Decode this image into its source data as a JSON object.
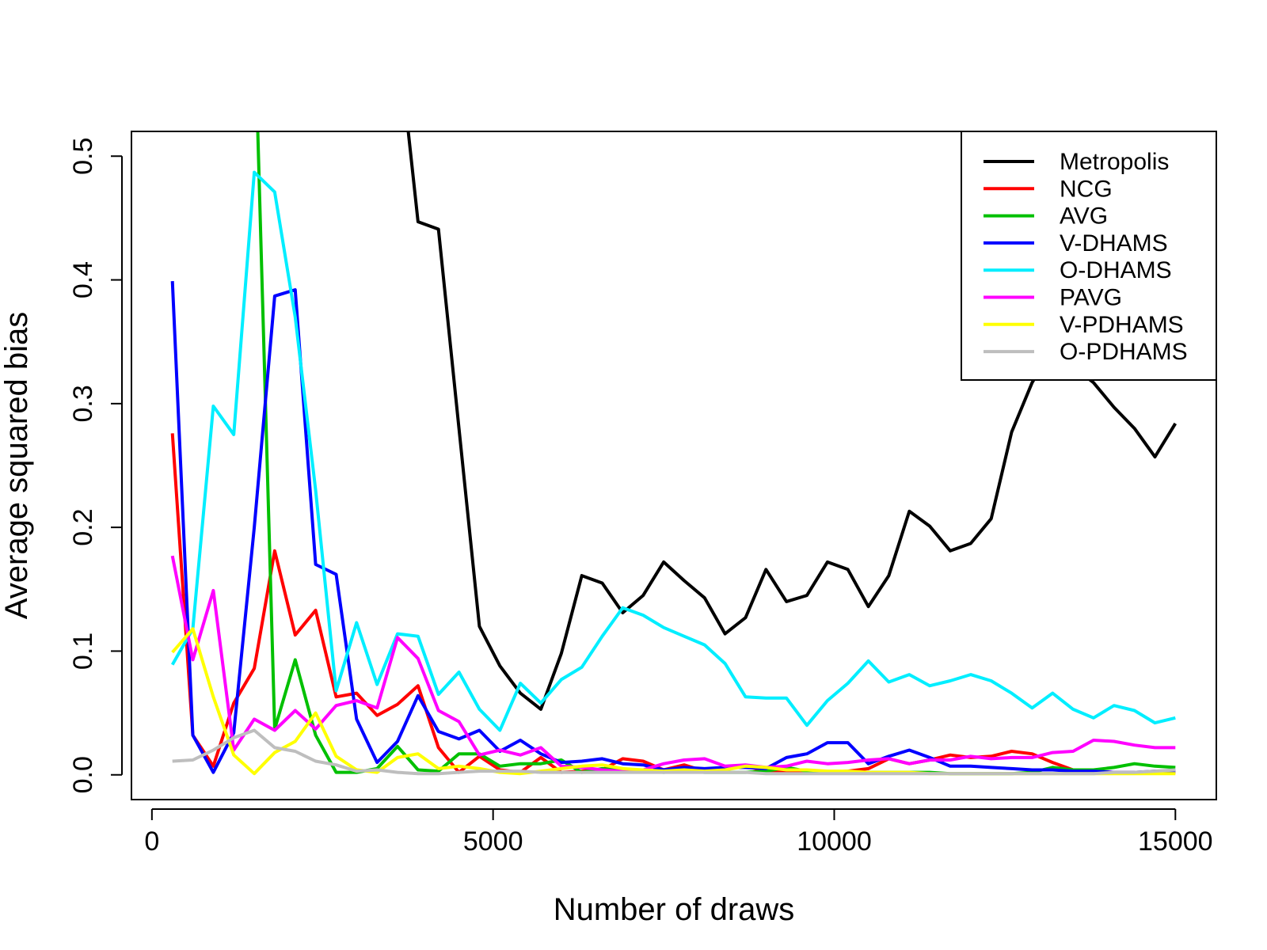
{
  "chart_data": {
    "type": "line",
    "title": "",
    "xlabel": "Number of draws",
    "ylabel": "Average squared bias",
    "xlim": [
      -300,
      15600
    ],
    "ylim": [
      -0.02,
      0.52
    ],
    "x_ticks": [
      0,
      5000,
      10000,
      15000
    ],
    "x_tick_labels": [
      "0",
      "5000",
      "10000",
      "15000"
    ],
    "y_ticks": [
      0.0,
      0.1,
      0.2,
      0.3,
      0.4,
      0.5
    ],
    "y_tick_labels": [
      "0.0",
      "0.1",
      "0.2",
      "0.3",
      "0.4",
      "0.5"
    ],
    "grid": false,
    "legend_position": "top-right",
    "x": [
      300,
      600,
      900,
      1200,
      1500,
      1800,
      2100,
      2400,
      2700,
      3000,
      3300,
      3600,
      3900,
      4200,
      4500,
      4800,
      5100,
      5400,
      5700,
      6000,
      6300,
      6600,
      6900,
      7200,
      7500,
      7800,
      8100,
      8400,
      8700,
      9000,
      9300,
      9600,
      9900,
      10200,
      10500,
      10800,
      11100,
      11400,
      11700,
      12000,
      12300,
      12600,
      12900,
      13200,
      13500,
      13800,
      14100,
      14400,
      14700,
      15000
    ],
    "series": [
      {
        "name": "Metropolis",
        "color": "#000000",
        "values": [
          null,
          null,
          null,
          null,
          null,
          null,
          null,
          null,
          null,
          null,
          null,
          0.6,
          0.447,
          0.441,
          0.28,
          0.12,
          0.088,
          0.066,
          0.053,
          0.098,
          0.161,
          0.155,
          0.131,
          0.145,
          0.172,
          0.157,
          0.143,
          0.114,
          0.127,
          0.166,
          0.14,
          0.145,
          0.172,
          0.166,
          0.136,
          0.161,
          0.213,
          0.201,
          0.181,
          0.187,
          0.207,
          0.277,
          0.317,
          0.345,
          0.33,
          0.317,
          0.297,
          0.28,
          0.257,
          0.284
        ]
      },
      {
        "name": "NCG",
        "color": "#ff0000",
        "values": [
          0.276,
          0.032,
          0.007,
          0.058,
          0.086,
          0.181,
          0.113,
          0.133,
          0.063,
          0.066,
          0.048,
          0.057,
          0.072,
          0.022,
          0.002,
          0.015,
          0.004,
          0.002,
          0.014,
          0.002,
          0.003,
          0.004,
          0.013,
          0.011,
          0.004,
          0.008,
          0.003,
          0.005,
          0.007,
          0.003,
          0.002,
          0.002,
          0.002,
          0.003,
          0.005,
          0.013,
          0.009,
          0.012,
          0.016,
          0.014,
          0.015,
          0.019,
          0.017,
          0.01,
          0.004,
          0.003,
          0.002,
          0.002,
          0.002,
          0.002
        ]
      },
      {
        "name": "AVG",
        "color": "#00c000",
        "values": [
          null,
          null,
          null,
          null,
          0.62,
          0.037,
          0.093,
          0.032,
          0.002,
          0.002,
          0.005,
          0.023,
          0.004,
          0.003,
          0.017,
          0.017,
          0.007,
          0.009,
          0.009,
          0.012,
          0.002,
          0.005,
          0.004,
          0.003,
          0.002,
          0.003,
          0.002,
          0.002,
          0.002,
          0.003,
          0.006,
          0.003,
          0.002,
          0.002,
          0.002,
          0.002,
          0.002,
          0.002,
          0.001,
          0.001,
          0.001,
          0.001,
          0.002,
          0.006,
          0.004,
          0.004,
          0.006,
          0.009,
          0.007,
          0.006
        ]
      },
      {
        "name": "V-DHAMS",
        "color": "#0000ff",
        "values": [
          0.399,
          0.032,
          0.002,
          0.034,
          0.2,
          0.387,
          0.392,
          0.17,
          0.162,
          0.045,
          0.01,
          0.027,
          0.064,
          0.035,
          0.029,
          0.036,
          0.019,
          0.028,
          0.017,
          0.01,
          0.011,
          0.013,
          0.009,
          0.008,
          0.004,
          0.006,
          0.005,
          0.006,
          0.006,
          0.005,
          0.014,
          0.017,
          0.026,
          0.026,
          0.009,
          0.015,
          0.02,
          0.014,
          0.007,
          0.007,
          0.006,
          0.005,
          0.004,
          0.004,
          0.003,
          0.003,
          0.002,
          0.002,
          0.003,
          0.003
        ]
      },
      {
        "name": "O-DHAMS",
        "color": "#00eeff",
        "values": [
          0.089,
          0.118,
          0.298,
          0.275,
          0.487,
          0.471,
          0.37,
          0.23,
          0.068,
          0.123,
          0.073,
          0.114,
          0.112,
          0.065,
          0.083,
          0.053,
          0.036,
          0.074,
          0.058,
          0.077,
          0.087,
          0.112,
          0.135,
          0.129,
          0.119,
          0.112,
          0.105,
          0.09,
          0.063,
          0.062,
          0.062,
          0.04,
          0.06,
          0.074,
          0.092,
          0.075,
          0.081,
          0.072,
          0.076,
          0.081,
          0.076,
          0.066,
          0.054,
          0.066,
          0.053,
          0.046,
          0.056,
          0.052,
          0.042,
          0.046
        ]
      },
      {
        "name": "PAVG",
        "color": "#ff00ff",
        "values": [
          0.177,
          0.093,
          0.149,
          0.02,
          0.045,
          0.036,
          0.052,
          0.037,
          0.056,
          0.06,
          0.054,
          0.111,
          0.094,
          0.052,
          0.043,
          0.016,
          0.02,
          0.016,
          0.022,
          0.007,
          0.006,
          0.004,
          0.003,
          0.004,
          0.009,
          0.012,
          0.013,
          0.007,
          0.008,
          0.006,
          0.007,
          0.011,
          0.009,
          0.01,
          0.012,
          0.013,
          0.009,
          0.012,
          0.012,
          0.015,
          0.013,
          0.014,
          0.014,
          0.018,
          0.019,
          0.028,
          0.027,
          0.024,
          0.022,
          0.022
        ]
      },
      {
        "name": "V-PDHAMS",
        "color": "#ffff00",
        "values": [
          0.099,
          0.118,
          0.063,
          0.016,
          0.001,
          0.018,
          0.027,
          0.05,
          0.015,
          0.004,
          0.002,
          0.014,
          0.017,
          0.005,
          0.007,
          0.005,
          0.002,
          0.001,
          0.003,
          0.005,
          0.007,
          0.008,
          0.005,
          0.004,
          0.003,
          0.004,
          0.003,
          0.004,
          0.007,
          0.006,
          0.004,
          0.004,
          0.003,
          0.003,
          0.002,
          0.002,
          0.002,
          0.001,
          0.001,
          0.001,
          0.001,
          0.001,
          0.001,
          0.001,
          0.001,
          0.001,
          0.001,
          0.001,
          0.001,
          0.001
        ]
      },
      {
        "name": "O-PDHAMS",
        "color": "#bebebe",
        "values": [
          0.011,
          0.012,
          0.02,
          0.03,
          0.036,
          0.022,
          0.019,
          0.011,
          0.008,
          0.003,
          0.004,
          0.002,
          0.001,
          0.001,
          0.002,
          0.003,
          0.003,
          0.003,
          0.002,
          0.002,
          0.002,
          0.002,
          0.002,
          0.002,
          0.002,
          0.002,
          0.002,
          0.002,
          0.002,
          0.001,
          0.001,
          0.001,
          0.001,
          0.001,
          0.001,
          0.001,
          0.001,
          0.001,
          0.001,
          0.001,
          0.001,
          0.001,
          0.001,
          0.001,
          0.001,
          0.001,
          0.002,
          0.002,
          0.003,
          0.004
        ]
      }
    ]
  }
}
